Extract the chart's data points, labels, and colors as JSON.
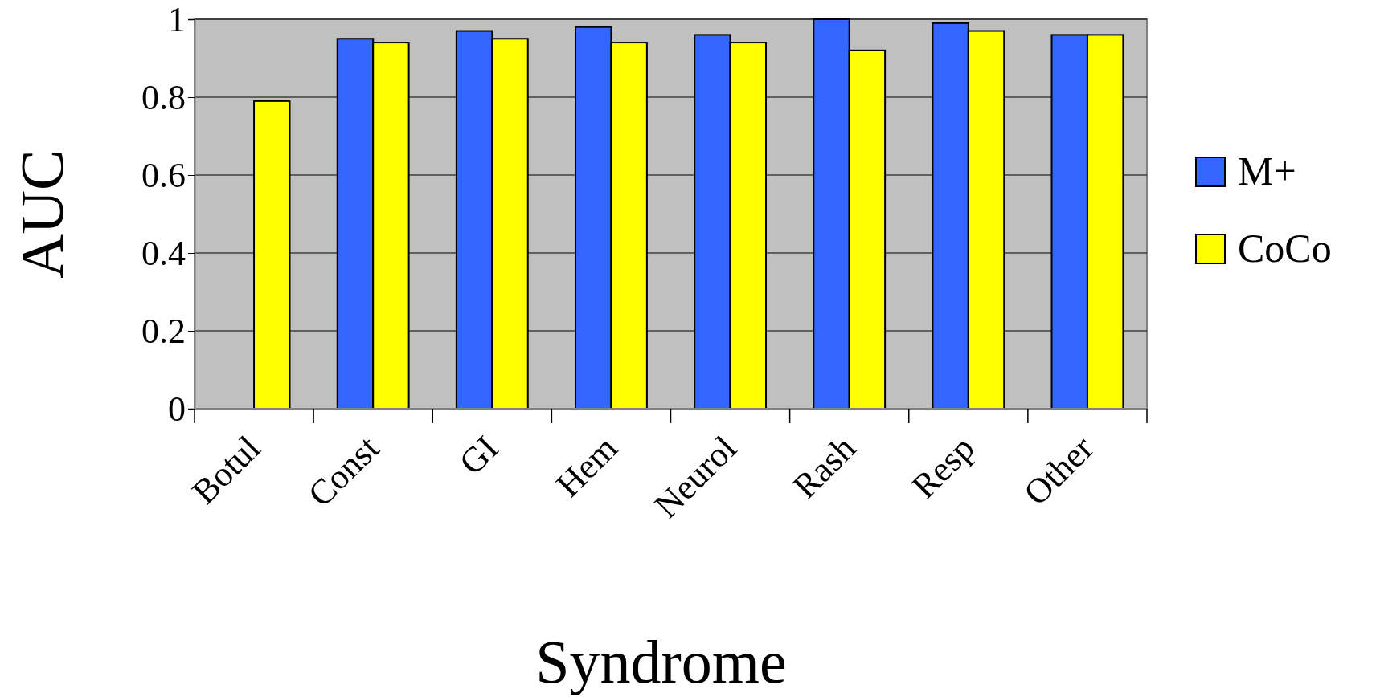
{
  "chart_data": {
    "type": "bar",
    "xlabel": "Syndrome",
    "ylabel": "AUC",
    "categories": [
      "Botul",
      "Const",
      "GI",
      "Hem",
      "Neurol",
      "Rash",
      "Resp",
      "Other"
    ],
    "series": [
      {
        "name": "M+",
        "color": "#3366ff",
        "values": [
          null,
          0.95,
          0.97,
          0.98,
          0.96,
          1.0,
          0.99,
          0.96
        ]
      },
      {
        "name": "CoCo",
        "color": "#ffff00",
        "values": [
          0.79,
          0.94,
          0.95,
          0.94,
          0.94,
          0.92,
          0.97,
          0.96
        ]
      }
    ],
    "ylim": [
      0,
      1
    ],
    "yticks": [
      0,
      0.2,
      0.4,
      0.6,
      0.8,
      1
    ],
    "grid": "y",
    "legend": "right"
  }
}
